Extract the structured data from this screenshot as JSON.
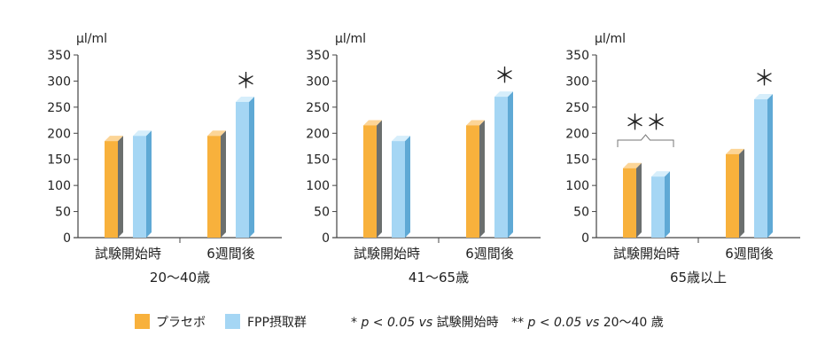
{
  "colors": {
    "placebo": "#F8B13C",
    "placebo_side": "#6B6F6E",
    "placebo_top": "#FCD597",
    "fpp": "#A5D6F4",
    "fpp_side": "#5FA9D5",
    "fpp_top": "#D6EEFB",
    "axis": "#444444",
    "grid": "#888888",
    "bracket": "#777777"
  },
  "chart_data": [
    {
      "type": "bar",
      "unit_label": "μl/ml",
      "categories": [
        "試験開始時",
        "6週間後"
      ],
      "series": [
        {
          "name": "プラセボ",
          "values": [
            185,
            195
          ]
        },
        {
          "name": "FPP摂取群",
          "values": [
            195,
            260
          ]
        }
      ],
      "ylim": [
        0,
        350
      ],
      "yticks": [
        "0",
        "50",
        "100",
        "150",
        "200",
        "250",
        "300",
        "350"
      ],
      "xlabel": "20〜40歳",
      "annotations": [
        {
          "text": "＊",
          "category": 1,
          "series": 1
        }
      ],
      "grid": false
    },
    {
      "type": "bar",
      "unit_label": "μl/ml",
      "categories": [
        "試験開始時",
        "6週間後"
      ],
      "series": [
        {
          "name": "プラセボ",
          "values": [
            215,
            215
          ]
        },
        {
          "name": "FPP摂取群",
          "values": [
            185,
            270
          ]
        }
      ],
      "ylim": [
        0,
        350
      ],
      "yticks": [
        "0",
        "50",
        "100",
        "150",
        "200",
        "250",
        "300",
        "350"
      ],
      "xlabel": "41〜65歳",
      "annotations": [
        {
          "text": "＊",
          "category": 1,
          "series": 1
        }
      ],
      "grid": false
    },
    {
      "type": "bar",
      "unit_label": "μl/ml",
      "categories": [
        "試験開始時",
        "6週間後"
      ],
      "series": [
        {
          "name": "プラセボ",
          "values": [
            133,
            160
          ]
        },
        {
          "name": "FPP摂取群",
          "values": [
            117,
            265
          ]
        }
      ],
      "ylim": [
        0,
        350
      ],
      "yticks": [
        "0",
        "50",
        "100",
        "150",
        "200",
        "250",
        "300",
        "350"
      ],
      "xlabel": "65歳以上",
      "annotations": [
        {
          "text": "＊",
          "category": 1,
          "series": 1
        },
        {
          "text": "＊＊",
          "category": 0,
          "bracket": true
        }
      ],
      "grid": false
    }
  ],
  "legend": {
    "placement": "bottom-center",
    "items": [
      "プラセボ",
      "FPP摂取群"
    ]
  },
  "footnote": {
    "star1": "*",
    "p1": "p < 0.05 vs",
    "ref1": "試験開始時",
    "star2": "**",
    "p2": "p < 0.05 vs",
    "ref2": "20〜40 歳"
  }
}
